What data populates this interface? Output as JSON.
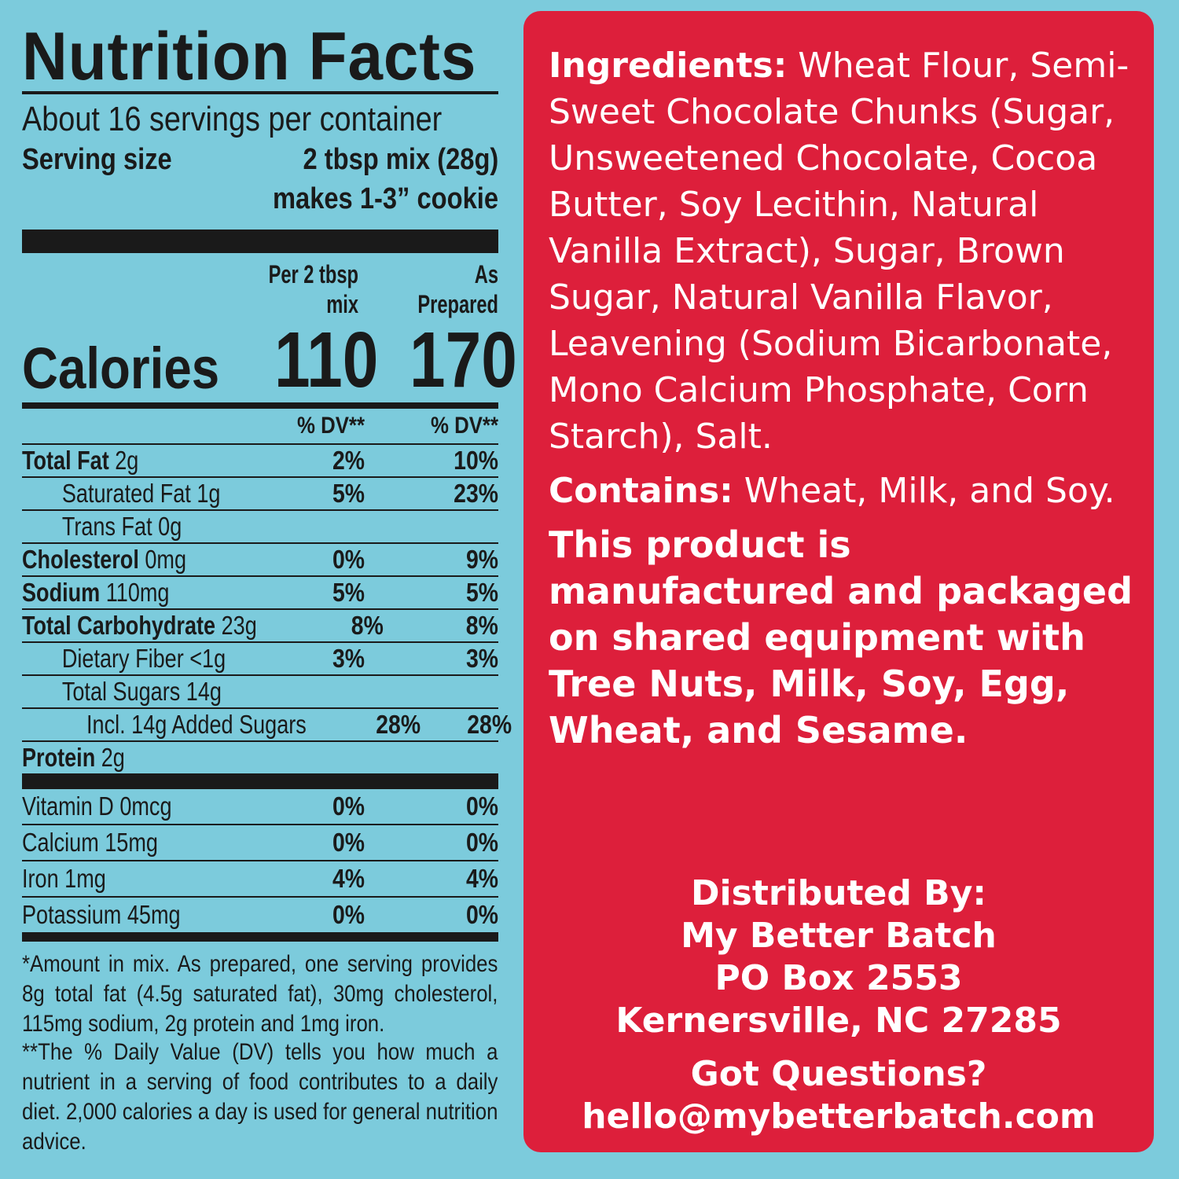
{
  "nutrition": {
    "title": "Nutrition Facts",
    "servings_per_container": "About 16 servings per container",
    "serving_size_label": "Serving size",
    "serving_size_value": "2 tbsp mix (28g)",
    "serving_size_makes": "makes 1-3” cookie",
    "col1_head_line1": "Per 2 tbsp",
    "col1_head_line2": "mix",
    "col2_head_line1": "As",
    "col2_head_line2": "Prepared",
    "calories_label": "Calories",
    "calories_mix": "110",
    "calories_prepared": "170",
    "dv_head_1": "% DV**",
    "dv_head_2": "% DV**",
    "rows": [
      {
        "name": "Total Fat",
        "amount": " 2g",
        "dv_mix": "2%",
        "dv_prep": "10%"
      },
      {
        "name": "Saturated Fat 1g",
        "amount": "",
        "dv_mix": "5%",
        "dv_prep": "23%"
      },
      {
        "name": "Trans Fat 0g",
        "amount": "",
        "dv_mix": "",
        "dv_prep": ""
      },
      {
        "name": "Cholesterol",
        "amount": " 0mg",
        "dv_mix": "0%",
        "dv_prep": "9%"
      },
      {
        "name": "Sodium",
        "amount": " 110mg",
        "dv_mix": "5%",
        "dv_prep": "5%"
      },
      {
        "name": "Total Carbohydrate",
        "amount": " 23g",
        "dv_mix": "8%",
        "dv_prep": "8%"
      },
      {
        "name": "Dietary Fiber <1g",
        "amount": "",
        "dv_mix": "3%",
        "dv_prep": "3%"
      },
      {
        "name": "Total Sugars 14g",
        "amount": "",
        "dv_mix": "",
        "dv_prep": ""
      },
      {
        "name": "Incl. 14g Added Sugars",
        "amount": "",
        "dv_mix": "28%",
        "dv_prep": "28%"
      },
      {
        "name": "Protein",
        "amount": " 2g",
        "dv_mix": "",
        "dv_prep": ""
      }
    ],
    "vitamins": [
      {
        "name": "Vitamin D 0mcg",
        "dv_mix": "0%",
        "dv_prep": "0%"
      },
      {
        "name": "Calcium 15mg",
        "dv_mix": "0%",
        "dv_prep": "0%"
      },
      {
        "name": "Iron 1mg",
        "dv_mix": "4%",
        "dv_prep": "4%"
      },
      {
        "name": "Potassium 45mg",
        "dv_mix": "0%",
        "dv_prep": "0%"
      }
    ],
    "footnote_1": "*Amount in mix. As prepared, one serving provides 8g total fat (4.5g saturated fat), 30mg cholesterol, 115mg sodium, 2g protein and 1mg iron.",
    "footnote_2": "**The % Daily Value (DV) tells you how much a nutrient in a serving of food contributes to a daily diet. 2,000 calories a day is used for general nutrition advice."
  },
  "ingredients": {
    "label": "Ingredients:",
    "text": " Wheat Flour, Semi-Sweet Chocolate Chunks (Sugar, Unsweetened Chocolate, Cocoa Butter, Soy Lecithin, Natural Vanilla Extract), Sugar, Brown Sugar, Natural Vanilla Flavor, Leavening (Sodium Bicarbonate, Mono Calcium Phosphate, Corn Starch), Salt."
  },
  "contains": {
    "label": "Contains:",
    "text": " Wheat, Milk, and Soy."
  },
  "warning": "This product is manufactured and packaged on shared equipment with Tree Nuts, Milk, Soy, Egg, Wheat, and Sesame.",
  "distributor": {
    "heading": "Distributed By:",
    "name": "My Better Batch",
    "address1": "PO Box 2553",
    "address2": "Kernersville, NC 27285",
    "questions": "Got Questions?",
    "email": "hello@mybetterbatch.com"
  },
  "colors": {
    "background": "#7ccbdc",
    "panel_red": "#dd1f3b",
    "ink": "#1a1a1a"
  }
}
